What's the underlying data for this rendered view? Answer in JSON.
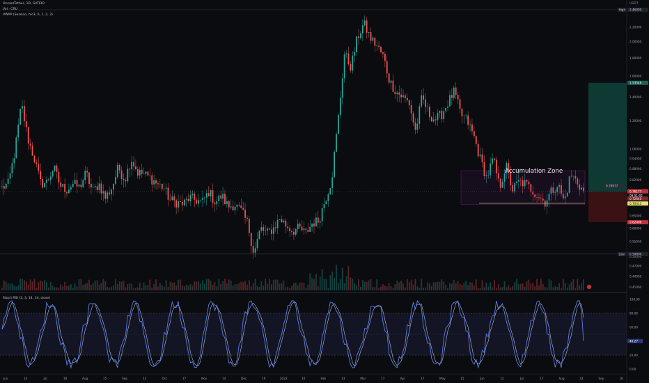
{
  "header": {
    "symbol_line": "Ocean/Tether, 1D, GATEIO",
    "vol_line": "Vol · CRU",
    "vwap_line": "VWAP (Session, hlc3, 0, 1, 2, 3)",
    "currency": "USDT",
    "stoch_line": "Stoch RSI (3, 3, 14, 14, close)"
  },
  "annotation": {
    "accumulation_label": "Accumulation Zone"
  },
  "colors": {
    "background": "#0b0c10",
    "up": "#26a69a",
    "down": "#ef5350",
    "stoch_k": "#5b7fe8",
    "stoch_d": "#c2cdf3",
    "zone": "#9c27b0",
    "target": "#0e3a33",
    "stop": "#3a1214"
  },
  "badges": {
    "high_label": "High",
    "high_value": "2.46000",
    "low_label": "Low",
    "low_value": "0.50800",
    "target_value": "1.53546",
    "stop_value": "0.62408",
    "current_value": "0.76177",
    "close_value": "0.72640",
    "yellow_value": "0.70413",
    "vwap_value": "0.78977",
    "rsi_k_value": "40.27",
    "countdown": "09:51:02"
  },
  "chart_data": [
    {
      "type": "candlestick",
      "title": "Ocean/Tether, 1D, GATEIO",
      "y_scale": "log",
      "ylim": [
        0.4,
        2.55
      ],
      "yticks": [
        "2.60000",
        "2.20000",
        "2.00000",
        "1.80000",
        "1.60000",
        "1.40000",
        "1.20000",
        "1.00000",
        "0.94000",
        "0.88000",
        "0.82000",
        "0.76000",
        "0.70000",
        "0.65000",
        "0.60000",
        "0.55000",
        "0.50000",
        "0.47000",
        "0.44000",
        "0.41000"
      ],
      "xticks": [
        "Jun",
        "14",
        "Jul",
        "18",
        "Aug",
        "15",
        "Sep",
        "12",
        "Oct",
        "17",
        "Nov",
        "14",
        "Dec",
        "19",
        "2023",
        "16",
        "Feb",
        "13",
        "Mar",
        "17",
        "Apr",
        "17",
        "May",
        "15",
        "Jun",
        "12",
        "Jul",
        "17",
        "Aug",
        "14",
        "Sep",
        "18"
      ],
      "price_path": [
        0.78,
        0.8,
        0.99,
        1.34,
        1.07,
        0.94,
        0.8,
        0.81,
        0.89,
        0.79,
        0.77,
        0.8,
        0.78,
        0.86,
        0.76,
        0.8,
        0.73,
        0.78,
        0.89,
        0.82,
        0.94,
        0.86,
        0.85,
        0.83,
        0.8,
        0.78,
        0.72,
        0.71,
        0.7,
        0.73,
        0.72,
        0.71,
        0.76,
        0.71,
        0.74,
        0.69,
        0.7,
        0.67,
        0.62,
        0.51,
        0.6,
        0.58,
        0.6,
        0.64,
        0.61,
        0.59,
        0.6,
        0.58,
        0.62,
        0.63,
        0.72,
        0.82,
        1.2,
        1.85,
        1.7,
        2.05,
        2.25,
        2.05,
        1.95,
        1.82,
        1.55,
        1.45,
        1.4,
        1.35,
        1.12,
        1.4,
        1.26,
        1.21,
        1.25,
        1.35,
        1.45,
        1.25,
        1.2,
        1.09,
        0.94,
        0.83,
        0.94,
        0.78,
        0.9,
        0.77,
        0.81,
        0.8,
        0.77,
        0.74,
        0.71,
        0.76,
        0.8,
        0.71,
        0.85,
        0.81,
        0.76
      ],
      "trend_points": [
        {
          "x_label": "Jun",
          "y": 0.78
        },
        {
          "x_label": "2023",
          "y": 0.6
        },
        {
          "x_label": "Feb",
          "y": 2.25
        },
        {
          "x_label": "Aug",
          "y": 0.76
        }
      ],
      "accumulation_zone": {
        "from_label": "May",
        "to_label": "14",
        "top": 0.87,
        "bottom": 0.7
      },
      "position": {
        "entry": 0.76,
        "target": 1.53546,
        "stop": 0.62408
      },
      "high": 2.46,
      "low": 0.508
    },
    {
      "type": "line",
      "title": "Stoch RSI (3, 3, 14, 14, close)",
      "ylim": [
        0,
        100
      ],
      "yticks": [
        "100.00",
        "80.00",
        "60.00",
        "40.00",
        "20.00",
        "0.00"
      ],
      "bands": [
        80,
        20
      ],
      "series": [
        {
          "name": "K",
          "last": 40.27
        },
        {
          "name": "D"
        }
      ]
    }
  ]
}
